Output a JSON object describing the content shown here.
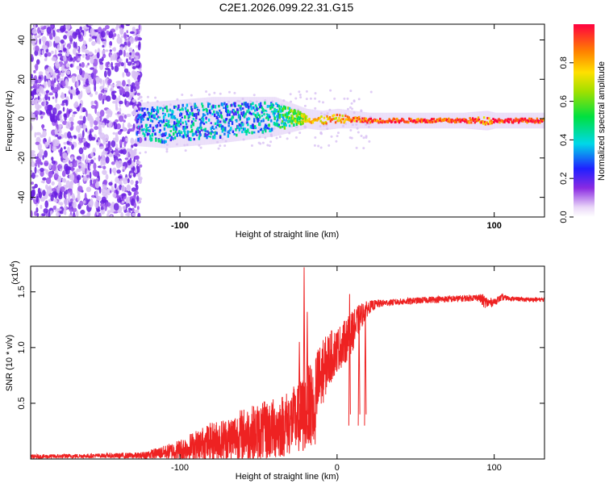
{
  "title": "C2E1.2026.099.22.31.G15",
  "chart_data": [
    {
      "type": "heatmap",
      "name": "spectrogram",
      "xlabel": "Height of straight line (km)",
      "ylabel": "Frequency (Hz)",
      "xlim": [
        -195,
        132
      ],
      "ylim": [
        -50,
        48
      ],
      "x_ticks": [
        -100,
        0,
        100
      ],
      "x_tick_labels": [
        "-100",
        "",
        "100"
      ],
      "y_ticks": [
        -40,
        -20,
        0,
        20,
        40
      ],
      "y_tick_labels": [
        "-40",
        "-20",
        "0",
        "20",
        "40"
      ],
      "signal_track": {
        "x": [
          -128,
          -110,
          -80,
          -60,
          -40,
          -20,
          -10,
          0,
          20,
          50,
          80,
          95,
          100,
          132
        ],
        "center_freq_hz": [
          -3,
          -3,
          -1,
          0,
          1,
          0,
          -1,
          0,
          -1,
          -1,
          -1,
          -1,
          -1,
          -1
        ],
        "spread_hz": [
          8,
          9,
          9,
          8,
          7,
          2,
          2,
          2,
          1,
          1,
          1,
          2,
          1,
          1
        ],
        "amplitude": [
          0.3,
          0.35,
          0.35,
          0.35,
          0.4,
          0.7,
          0.8,
          0.8,
          0.9,
          0.95,
          0.95,
          0.85,
          0.95,
          0.95
        ]
      },
      "noise_region_x": [
        -195,
        -125
      ],
      "colorbar": {
        "label": "Normalized spectral amplitude",
        "range": [
          0,
          1
        ],
        "ticks": [
          0,
          0.2,
          0.4,
          0.6,
          0.8
        ],
        "tick_labels": [
          "0.0",
          "0.2",
          "0.4",
          "0.6",
          "0.8"
        ]
      }
    },
    {
      "type": "line",
      "name": "snr",
      "xlabel": "Height of straight line (km)",
      "ylabel": "SNR (10 * v/v)",
      "multiplier_label": "(x10",
      "multiplier_exp": "4",
      "multiplier_close": ")",
      "xlim": [
        -195,
        132
      ],
      "ylim": [
        0,
        1.73
      ],
      "x_ticks": [
        -100,
        0,
        100
      ],
      "x_tick_labels": [
        "-100",
        "0",
        "100"
      ],
      "y_ticks": [
        0.5,
        1.0,
        1.5
      ],
      "y_tick_labels": [
        "0.5",
        "1.0",
        "1.5"
      ],
      "color": "#ee2222",
      "series": [
        {
          "name": "SNR",
          "x": [
            -195,
            -150,
            -125,
            -110,
            -100,
            -90,
            -80,
            -70,
            -60,
            -50,
            -40,
            -30,
            -25,
            -20,
            -15,
            -10,
            -5,
            0,
            5,
            10,
            15,
            20,
            25,
            30,
            40,
            60,
            80,
            90,
            93,
            96,
            100,
            105,
            110,
            120,
            132
          ],
          "values": [
            0.02,
            0.03,
            0.03,
            0.06,
            0.08,
            0.12,
            0.15,
            0.18,
            0.22,
            0.24,
            0.27,
            0.33,
            0.36,
            0.42,
            0.55,
            0.75,
            0.9,
            0.98,
            1.05,
            1.15,
            1.28,
            1.36,
            1.39,
            1.4,
            1.41,
            1.43,
            1.44,
            1.45,
            1.42,
            1.4,
            1.41,
            1.45,
            1.44,
            1.43,
            1.43
          ],
          "noise": [
            0.02,
            0.02,
            0.03,
            0.06,
            0.1,
            0.14,
            0.18,
            0.2,
            0.24,
            0.26,
            0.28,
            0.3,
            0.32,
            0.35,
            0.4,
            0.3,
            0.25,
            0.2,
            0.2,
            0.18,
            0.12,
            0.06,
            0.04,
            0.03,
            0.03,
            0.03,
            0.03,
            0.03,
            0.06,
            0.05,
            0.03,
            0.03,
            0.02,
            0.02,
            0.02
          ]
        }
      ],
      "spikes": [
        {
          "x": -21,
          "value": 1.72
        },
        {
          "x": -19,
          "value": 1.32
        },
        {
          "x": -24,
          "value": 1.05
        },
        {
          "x": 8,
          "value": 1.48
        },
        {
          "x": 14,
          "value": 1.32
        },
        {
          "x": 18,
          "value": 1.38
        }
      ]
    }
  ]
}
